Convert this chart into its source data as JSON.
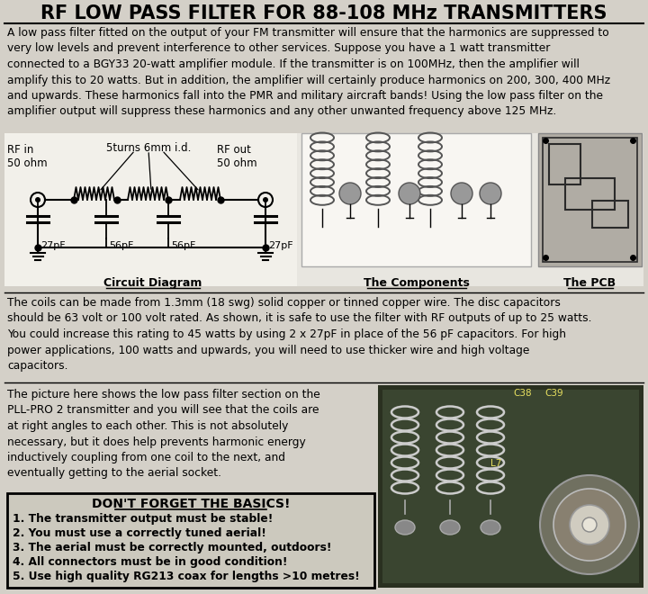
{
  "title": "RF LOW PASS FILTER FOR 88-108 MHz TRANSMITTERS",
  "bg_color": "#d4d0c8",
  "white": "#f0eeea",
  "text_color": "#000000",
  "title_fontsize": 15,
  "body_fontsize": 8.8,
  "small_fontsize": 8.0,
  "intro_text": "A low pass filter fitted on the output of your FM transmitter will ensure that the harmonics are suppressed to\nvery low levels and prevent interference to other services. Suppose you have a 1 watt transmitter\nconnected to a BGY33 20-watt amplifier module. If the transmitter is on 100MHz, then the amplifier will\namplify this to 20 watts. But in addition, the amplifier will certainly produce harmonics on 200, 300, 400 MHz\nand upwards. These harmonics fall into the PMR and military aircraft bands! Using the low pass filter on the\namplifier output will suppress these harmonics and any other unwanted frequency above 125 MHz.",
  "coil_text": "The coils can be made from 1.3mm (18 swg) solid copper or tinned copper wire. The disc capacitors\nshould be 63 volt or 100 volt rated. As shown, it is safe to use the filter with RF outputs of up to 25 watts.\nYou could increase this rating to 45 watts by using 2 x 27pF in place of the 56 pF capacitors. For high\npower applications, 100 watts and upwards, you will need to use thicker wire and high voltage\ncapacitors.",
  "pll_text": "The picture here shows the low pass filter section on the\nPLL-PRO 2 transmitter and you will see that the coils are\nat right angles to each other. This is not absolutely\nnecessary, but it does help prevents harmonic energy\ninductively coupling from one coil to the next, and\neventually getting to the aerial socket.",
  "basics_title": "DON'T FORGET THE BASICS!",
  "basics_items": [
    "1. The transmitter output must be stable!",
    "2. You must use a correctly tuned aerial!",
    "3. The aerial must be correctly mounted, outdoors!",
    "4. All connectors must be in good condition!",
    "5. Use high quality RG213 coax for lengths >10 metres!"
  ],
  "circuit_label": "Circuit Diagram",
  "components_label": "The Components",
  "pcb_label": "The PCB",
  "rf_in_label": "RF in\n50 ohm",
  "rf_out_label": "RF out\n50 ohm",
  "coil_label": "5turns 6mm i.d.",
  "caps": [
    "27pF",
    "56pF",
    "56pF",
    "27pF"
  ]
}
